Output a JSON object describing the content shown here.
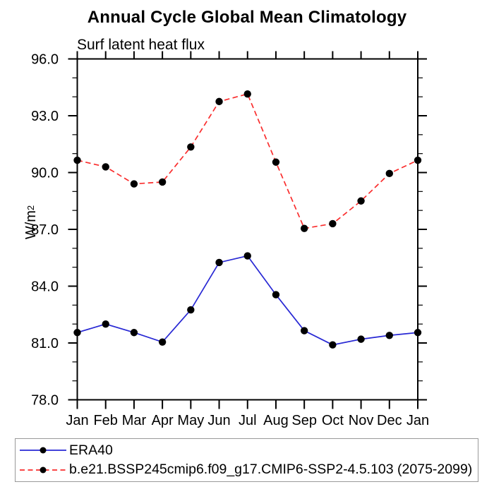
{
  "page": {
    "background": "#ffffff"
  },
  "chart_data": {
    "type": "line",
    "title": "Annual Cycle Global Mean Climatology",
    "subtitle": "Surf latent heat flux",
    "ylabel_base": "W/m",
    "ylabel_exponent": "2",
    "categories": [
      "Jan",
      "Feb",
      "Mar",
      "Apr",
      "May",
      "Jun",
      "Jul",
      "Aug",
      "Sep",
      "Oct",
      "Nov",
      "Dec",
      "Jan"
    ],
    "ylim": [
      78,
      96
    ],
    "ytick_step": 3,
    "yminor_step": 1,
    "ytick_labels": [
      "78.0",
      "81.0",
      "84.0",
      "87.0",
      "90.0",
      "93.0",
      "96.0"
    ],
    "grid": false,
    "legend_position": "bottom-left",
    "axis_color": "#000000",
    "marker_color": "#000000",
    "legend_border_color": "#999999",
    "series": [
      {
        "name": "ERA40",
        "color": "#2828d4",
        "style": "solid",
        "marker": "filled-circle",
        "values": [
          81.55,
          82.0,
          81.55,
          81.05,
          82.75,
          85.25,
          85.6,
          83.55,
          81.65,
          80.9,
          81.2,
          81.4,
          81.55
        ]
      },
      {
        "name": "b.e21.BSSP245cmip6.f09_g17.CMIP6-SSP2-4.5.103 (2075-2099)",
        "color": "#fa2d2d",
        "style": "dashed",
        "marker": "filled-circle",
        "values": [
          90.65,
          90.3,
          89.4,
          89.5,
          91.35,
          93.75,
          94.15,
          90.55,
          87.05,
          87.3,
          88.5,
          89.95,
          90.65
        ]
      }
    ]
  }
}
